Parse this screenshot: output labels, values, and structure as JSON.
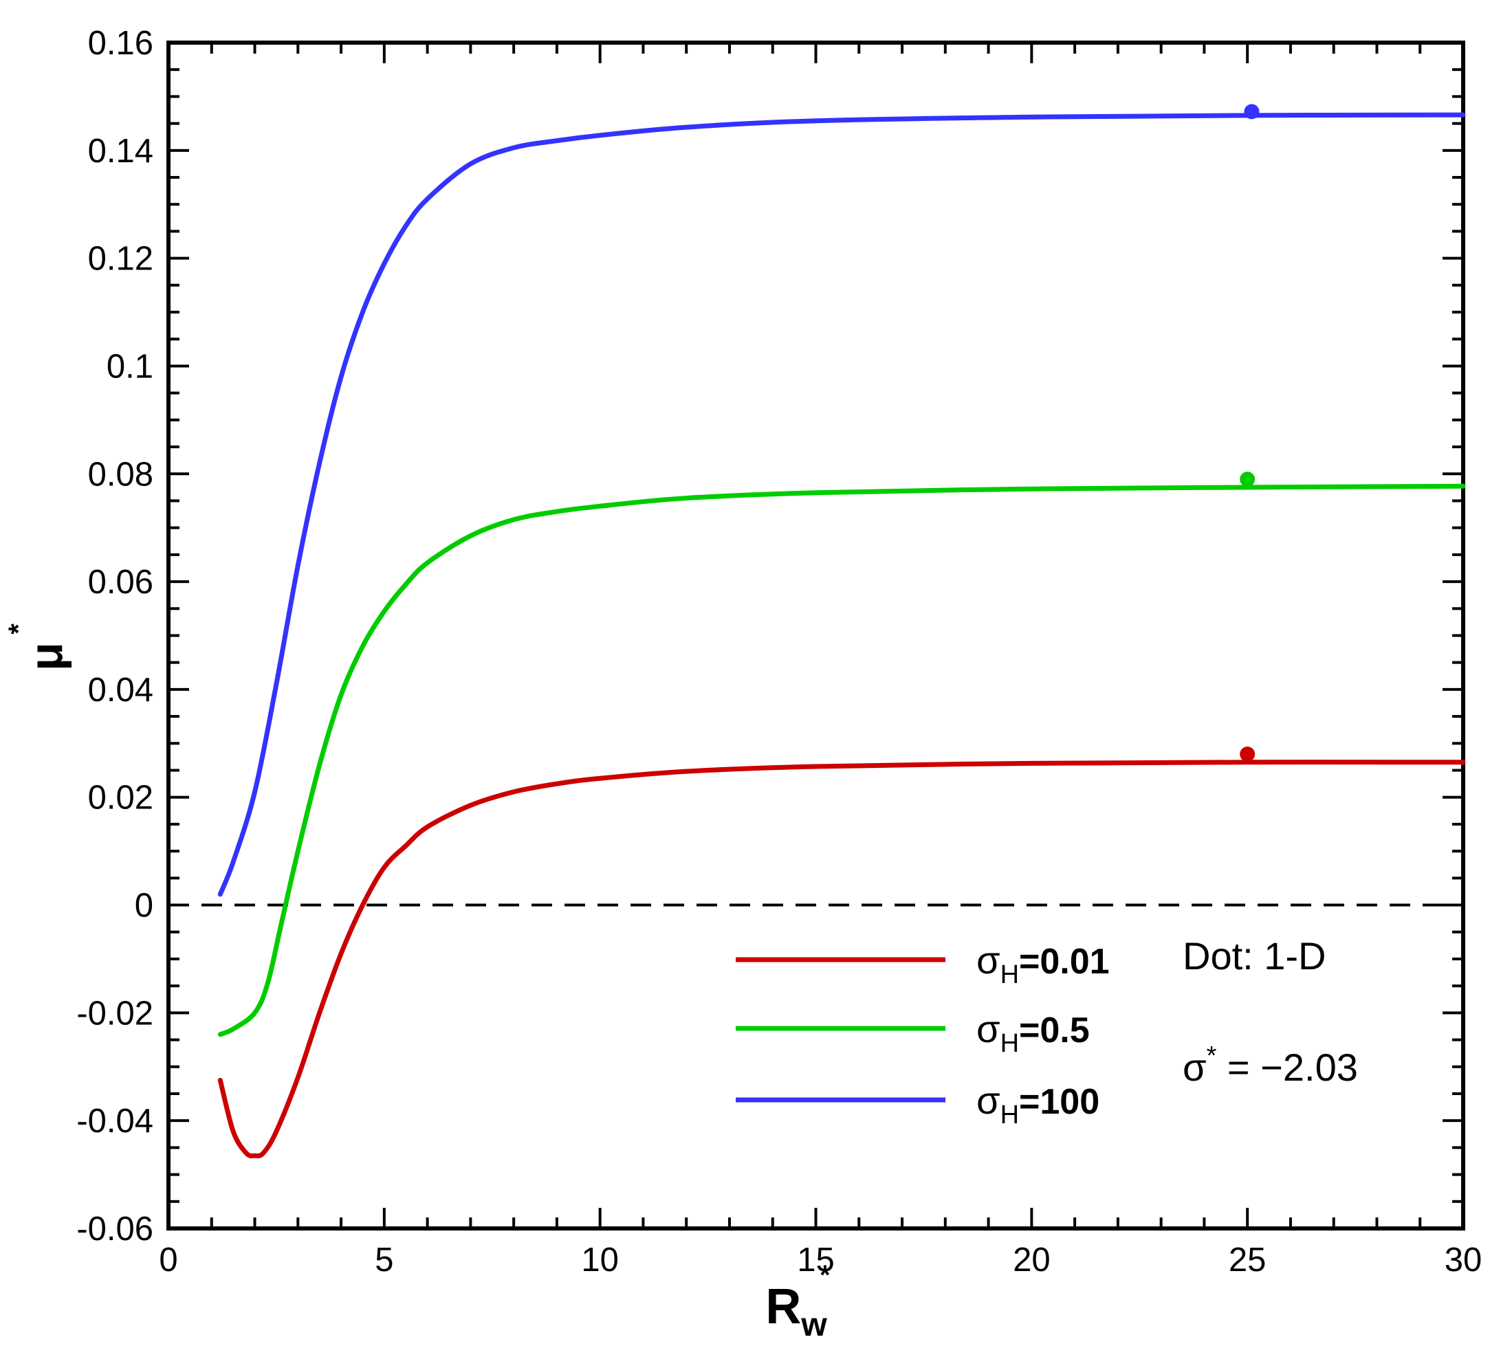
{
  "chart_data": {
    "type": "line",
    "xlabel": "R",
    "xlabel_sub": "w",
    "xlabel_sup": "*",
    "ylabel": "μ",
    "ylabel_sup": "*",
    "xlim": [
      0,
      30
    ],
    "ylim": [
      -0.06,
      0.16
    ],
    "x_ticks": [
      0,
      5,
      10,
      15,
      20,
      25,
      30
    ],
    "x_tick_labels": [
      "0",
      "5",
      "10",
      "15",
      "20",
      "25",
      "30"
    ],
    "y_ticks": [
      -0.06,
      -0.04,
      -0.02,
      0,
      0.02,
      0.04,
      0.06,
      0.08,
      0.1,
      0.12,
      0.14,
      0.16
    ],
    "y_tick_labels": [
      "-0.06",
      "-0.04",
      "-0.02",
      "0",
      "0.02",
      "0.04",
      "0.06",
      "0.08",
      "0.1",
      "0.12",
      "0.14",
      "0.16"
    ],
    "grid": false,
    "legend_position": "bottom-center",
    "reference_line": {
      "y": 0,
      "style": "dashed",
      "color": "#000000"
    },
    "series": [
      {
        "name": "σ",
        "name_sub": "H",
        "name_value": "=0.01",
        "color": "#cc0000",
        "x": [
          1.2,
          1.5,
          1.8,
          2.0,
          2.2,
          2.5,
          3.0,
          3.5,
          4.0,
          4.5,
          5.0,
          5.5,
          6.0,
          7.0,
          8.0,
          9.0,
          10.0,
          12.0,
          15.0,
          20.0,
          25.0,
          30.0
        ],
        "y": [
          -0.0325,
          -0.042,
          -0.046,
          -0.0465,
          -0.046,
          -0.042,
          -0.032,
          -0.02,
          -0.009,
          0.0,
          0.007,
          0.011,
          0.0145,
          0.0185,
          0.021,
          0.0225,
          0.0235,
          0.0248,
          0.0257,
          0.0263,
          0.0265,
          0.0265
        ],
        "dot": {
          "label": "1-D",
          "x": 25,
          "y": 0.028
        }
      },
      {
        "name": "σ",
        "name_sub": "H",
        "name_value": "=0.5",
        "color": "#00cc00",
        "x": [
          1.2,
          1.5,
          2.0,
          2.3,
          2.6,
          3.0,
          3.5,
          4.0,
          4.5,
          5.0,
          5.5,
          6.0,
          7.0,
          8.0,
          9.0,
          10.0,
          12.0,
          15.0,
          20.0,
          25.0,
          30.0
        ],
        "y": [
          -0.024,
          -0.023,
          -0.02,
          -0.0145,
          -0.004,
          0.01,
          0.026,
          0.039,
          0.048,
          0.0545,
          0.0595,
          0.0635,
          0.0685,
          0.0715,
          0.073,
          0.074,
          0.0755,
          0.0765,
          0.0772,
          0.0775,
          0.0777
        ],
        "dot": {
          "label": "1-D",
          "x": 25,
          "y": 0.079
        }
      },
      {
        "name": "σ",
        "name_sub": "H",
        "name_value": "=100",
        "color": "#3333ff",
        "x": [
          1.2,
          1.5,
          2.0,
          2.5,
          3.0,
          3.5,
          4.0,
          4.5,
          5.0,
          5.5,
          6.0,
          7.0,
          8.0,
          9.0,
          10.0,
          12.0,
          15.0,
          20.0,
          25.0,
          30.0
        ],
        "y": [
          0.002,
          0.008,
          0.021,
          0.041,
          0.063,
          0.082,
          0.098,
          0.11,
          0.119,
          0.126,
          0.131,
          0.1375,
          0.1405,
          0.1418,
          0.1428,
          0.1443,
          0.1455,
          0.1462,
          0.1465,
          0.1466
        ],
        "dot": {
          "label": "1-D",
          "x": 25.1,
          "y": 0.1472
        }
      }
    ],
    "annotations": {
      "dot_note": "Dot: 1-D",
      "sigma_note_base": "σ",
      "sigma_note_sup": "*",
      "sigma_note_value": " = −2.03"
    }
  }
}
